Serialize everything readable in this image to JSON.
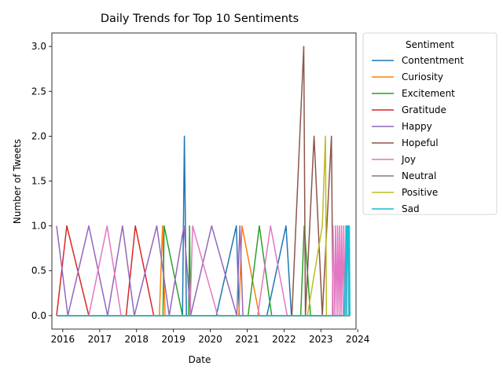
{
  "chart_data": {
    "type": "line",
    "title": "Daily Trends for Top 10 Sentiments",
    "xlabel": "Date",
    "ylabel": "Number of Tweets",
    "xlim": [
      "2015-09-15",
      "2023-12-15"
    ],
    "ylim": [
      -0.15,
      3.15
    ],
    "x_ticks": [
      "2016-01-01",
      "2017-01-01",
      "2018-01-01",
      "2019-01-01",
      "2020-01-01",
      "2021-01-01",
      "2022-01-01",
      "2023-01-01",
      "2024-01-01"
    ],
    "x_tick_labels": [
      "2016",
      "2017",
      "2018",
      "2019",
      "2020",
      "2021",
      "2022",
      "2023",
      "2024"
    ],
    "y_ticks": [
      0.0,
      0.5,
      1.0,
      1.5,
      2.0,
      2.5,
      3.0
    ],
    "y_tick_labels": [
      "0.0",
      "0.5",
      "1.0",
      "1.5",
      "2.0",
      "2.5",
      "3.0"
    ],
    "grid": false,
    "legend": {
      "title": "Sentiment",
      "placement": "outside right"
    },
    "series": [
      {
        "name": " Contentment",
        "color": "#1f77b4",
        "points": [
          [
            "2015-11-01",
            0
          ],
          [
            "2019-04-01",
            0
          ],
          [
            "2019-04-20",
            2
          ],
          [
            "2019-05-10",
            0
          ],
          [
            "2020-03-01",
            0
          ],
          [
            "2020-09-15",
            1
          ],
          [
            "2020-10-15",
            0
          ],
          [
            "2021-07-15",
            0
          ],
          [
            "2022-01-20",
            1
          ],
          [
            "2022-03-15",
            0
          ],
          [
            "2023-10-15",
            0
          ]
        ]
      },
      {
        "name": " Curiosity",
        "color": "#ff7f0e",
        "points": [
          [
            "2015-11-01",
            0
          ],
          [
            "2018-08-15",
            0
          ],
          [
            "2018-09-15",
            1
          ],
          [
            "2018-10-10",
            0
          ],
          [
            "2020-10-10",
            0
          ],
          [
            "2020-11-10",
            1
          ],
          [
            "2021-05-01",
            0
          ],
          [
            "2023-10-15",
            0
          ]
        ]
      },
      {
        "name": " Excitement",
        "color": "#2ca02c",
        "points": [
          [
            "2015-11-01",
            0
          ],
          [
            "2018-09-20",
            0
          ],
          [
            "2018-10-01",
            1
          ],
          [
            "2019-04-01",
            0
          ],
          [
            "2019-06-01",
            0
          ],
          [
            "2019-06-10",
            1
          ],
          [
            "2019-06-20",
            0
          ],
          [
            "2021-01-10",
            0
          ],
          [
            "2021-05-01",
            1
          ],
          [
            "2021-09-01",
            0
          ],
          [
            "2022-06-15",
            0
          ],
          [
            "2022-07-20",
            1
          ],
          [
            "2022-09-20",
            0
          ],
          [
            "2023-10-15",
            0
          ]
        ]
      },
      {
        "name": " Gratitude",
        "color": "#d62728",
        "points": [
          [
            "2015-11-01",
            0
          ],
          [
            "2016-02-10",
            1
          ],
          [
            "2016-09-15",
            0
          ],
          [
            "2017-09-20",
            0
          ],
          [
            "2017-12-20",
            1
          ],
          [
            "2018-06-20",
            0
          ],
          [
            "2021-11-20",
            0
          ],
          [
            "2022-01-15",
            0
          ],
          [
            "2023-10-15",
            0
          ]
        ]
      },
      {
        "name": " Happy",
        "color": "#9467bd",
        "points": [
          [
            "2015-11-01",
            1
          ],
          [
            "2016-02-20",
            0
          ],
          [
            "2016-09-15",
            1
          ],
          [
            "2017-03-20",
            0
          ],
          [
            "2017-08-15",
            1
          ],
          [
            "2017-12-10",
            0
          ],
          [
            "2018-07-20",
            1
          ],
          [
            "2018-11-20",
            0
          ],
          [
            "2019-04-15",
            1
          ],
          [
            "2019-06-20",
            0
          ],
          [
            "2020-01-15",
            1
          ],
          [
            "2020-09-20",
            0
          ],
          [
            "2020-10-20",
            1
          ],
          [
            "2020-11-20",
            0
          ],
          [
            "2023-10-15",
            0
          ]
        ]
      },
      {
        "name": " Hopeful",
        "color": "#8c564b",
        "points": [
          [
            "2015-11-01",
            0
          ],
          [
            "2022-03-20",
            0
          ],
          [
            "2022-07-15",
            3
          ],
          [
            "2022-08-01",
            0
          ],
          [
            "2022-10-25",
            2
          ],
          [
            "2023-01-15",
            0
          ],
          [
            "2023-04-15",
            2
          ],
          [
            "2023-05-01",
            0
          ],
          [
            "2023-10-15",
            0
          ]
        ]
      },
      {
        "name": " Joy",
        "color": "#e377c2",
        "points": [
          [
            "2015-11-01",
            0
          ],
          [
            "2016-09-15",
            0
          ],
          [
            "2017-03-15",
            1
          ],
          [
            "2017-08-01",
            0
          ],
          [
            "2019-06-15",
            0
          ],
          [
            "2019-07-10",
            1
          ],
          [
            "2020-03-15",
            0
          ],
          [
            "2021-04-15",
            0
          ],
          [
            "2021-08-20",
            1
          ],
          [
            "2022-02-01",
            0
          ],
          [
            "2023-04-25",
            0
          ],
          [
            "2023-05-01",
            1
          ],
          [
            "2023-05-20",
            0
          ],
          [
            "2023-05-25",
            1
          ],
          [
            "2023-06-10",
            0
          ],
          [
            "2023-06-15",
            1
          ],
          [
            "2023-07-01",
            0
          ],
          [
            "2023-07-05",
            1
          ],
          [
            "2023-07-20",
            0
          ],
          [
            "2023-07-25",
            1
          ],
          [
            "2023-08-10",
            0
          ],
          [
            "2023-08-15",
            1
          ],
          [
            "2023-09-01",
            0
          ],
          [
            "2023-09-05",
            1
          ],
          [
            "2023-09-20",
            1
          ],
          [
            "2023-10-15",
            0
          ]
        ]
      },
      {
        "name": " Neutral",
        "color": "#7f7f7f",
        "points": [
          [
            "2015-11-01",
            0
          ],
          [
            "2023-10-15",
            0
          ]
        ]
      },
      {
        "name": " Positive",
        "color": "#bcbd22",
        "points": [
          [
            "2015-11-01",
            0
          ],
          [
            "2022-08-20",
            0
          ],
          [
            "2023-01-15",
            1
          ],
          [
            "2023-02-15",
            2
          ],
          [
            "2023-02-25",
            0
          ],
          [
            "2023-10-15",
            0
          ]
        ]
      },
      {
        "name": " Sad",
        "color": "#17becf",
        "points": [
          [
            "2015-11-01",
            0
          ],
          [
            "2023-08-20",
            0
          ],
          [
            "2023-09-10",
            1
          ],
          [
            "2023-09-15",
            0
          ],
          [
            "2023-09-20",
            1
          ],
          [
            "2023-09-30",
            1
          ],
          [
            "2023-10-05",
            0
          ],
          [
            "2023-10-10",
            1
          ],
          [
            "2023-10-15",
            0
          ]
        ]
      }
    ]
  }
}
